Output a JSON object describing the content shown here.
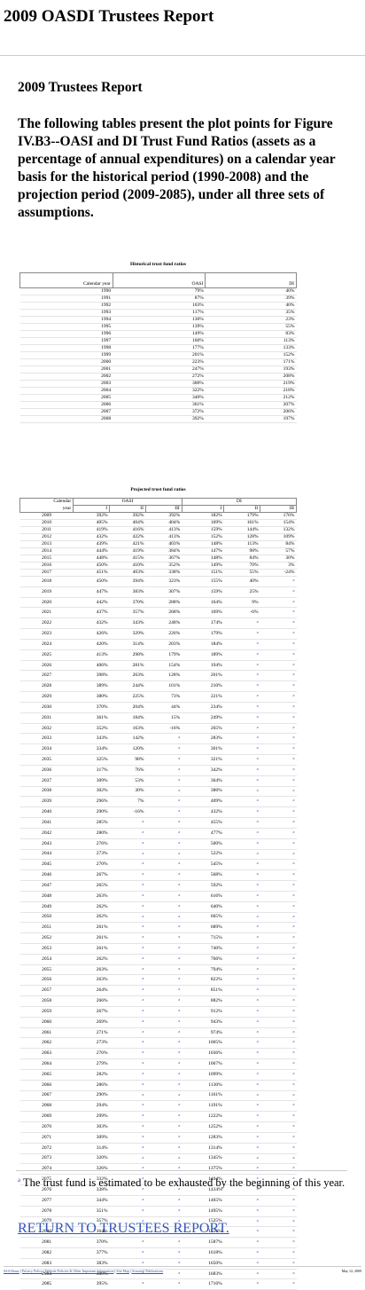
{
  "header": {
    "title": "2009 OASDI Trustees Report"
  },
  "main": {
    "title": "2009 Trustees Report",
    "intro": "The following tables present the plot points for Figure IV.B3--OASI and DI Trust Fund Ratios (assets as a percentage of annual expenditures) on a calendar year basis for the historical period (1990-2008) and the projection period (2009-2085), under all three sets of assumptions."
  },
  "historical": {
    "caption": "Historical trust fund ratios",
    "headers": {
      "year": "Calendar year",
      "oasi": "OASI",
      "di": "DI"
    },
    "rows": [
      [
        "1990",
        "79%",
        "40%"
      ],
      [
        "1991",
        "87%",
        "39%"
      ],
      [
        "1992",
        "103%",
        "40%"
      ],
      [
        "1993",
        "117%",
        "35%"
      ],
      [
        "1994",
        "130%",
        "23%"
      ],
      [
        "1995",
        "139%",
        "55%"
      ],
      [
        "1996",
        "149%",
        "83%"
      ],
      [
        "1997",
        "160%",
        "113%"
      ],
      [
        "1998",
        "177%",
        "133%"
      ],
      [
        "1999",
        "201%",
        "152%"
      ],
      [
        "2000",
        "223%",
        "171%"
      ],
      [
        "2001",
        "247%",
        "193%"
      ],
      [
        "2002",
        "272%",
        "208%"
      ],
      [
        "2003",
        "300%",
        "219%"
      ],
      [
        "2004",
        "322%",
        "218%"
      ],
      [
        "2005",
        "340%",
        "212%"
      ],
      [
        "2006",
        "361%",
        "207%"
      ],
      [
        "2007",
        "372%",
        "206%"
      ],
      [
        "2008",
        "392%",
        "197%"
      ]
    ]
  },
  "projected": {
    "caption": "Projected trust fund ratios",
    "headers": {
      "year": "Calendar",
      "year2": "year",
      "oasi": "OASI",
      "di": "DI",
      "alts": [
        "I",
        "II",
        "III"
      ]
    },
    "exhausted_mark": "a",
    "rows": [
      [
        "2009",
        "392%",
        "392%",
        "392%",
        "182%",
        "179%",
        "176%"
      ],
      [
        "2010",
        "405%",
        "404%",
        "404%",
        "169%",
        "161%",
        "154%"
      ],
      [
        "2011",
        "419%",
        "416%",
        "413%",
        "159%",
        "144%",
        "132%"
      ],
      [
        "2012",
        "432%",
        "422%",
        "413%",
        "152%",
        "128%",
        "109%"
      ],
      [
        "2013",
        "439%",
        "421%",
        "403%",
        "148%",
        "113%",
        "84%"
      ],
      [
        "2014",
        "444%",
        "419%",
        "384%",
        "147%",
        "98%",
        "57%"
      ],
      [
        "2015",
        "448%",
        "415%",
        "367%",
        "148%",
        "84%",
        "30%"
      ],
      [
        "2016",
        "450%",
        "410%",
        "352%",
        "149%",
        "70%",
        "3%"
      ],
      [
        "2017",
        "451%",
        "403%",
        "338%",
        "151%",
        "55%",
        "-24%"
      ],
      [
        "2018",
        "450%",
        "394%",
        "323%",
        "155%",
        "40%",
        "a"
      ],
      [
        "2019",
        "447%",
        "383%",
        "307%",
        "159%",
        "25%",
        "a"
      ],
      [
        "2020",
        "442%",
        "370%",
        "288%",
        "164%",
        "9%",
        "a"
      ],
      [
        "2021",
        "437%",
        "357%",
        "268%",
        "169%",
        "-6%",
        "a"
      ],
      [
        "2022",
        "432%",
        "343%",
        "248%",
        "174%",
        "a",
        "a"
      ],
      [
        "2023",
        "426%",
        "329%",
        "226%",
        "179%",
        "a",
        "a"
      ],
      [
        "2024",
        "420%",
        "314%",
        "203%",
        "184%",
        "a",
        "a"
      ],
      [
        "2025",
        "413%",
        "298%",
        "179%",
        "189%",
        "a",
        "a"
      ],
      [
        "2026",
        "406%",
        "281%",
        "154%",
        "194%",
        "a",
        "a"
      ],
      [
        "2027",
        "398%",
        "263%",
        "128%",
        "201%",
        "a",
        "a"
      ],
      [
        "2028",
        "389%",
        "244%",
        "101%",
        "210%",
        "a",
        "a"
      ],
      [
        "2029",
        "380%",
        "225%",
        "73%",
        "221%",
        "a",
        "a"
      ],
      [
        "2030",
        "370%",
        "204%",
        "44%",
        "234%",
        "a",
        "a"
      ],
      [
        "2031",
        "361%",
        "184%",
        "15%",
        "249%",
        "a",
        "a"
      ],
      [
        "2032",
        "352%",
        "163%",
        "-16%",
        "265%",
        "a",
        "a"
      ],
      [
        "2033",
        "343%",
        "142%",
        "a",
        "283%",
        "a",
        "a"
      ],
      [
        "2034",
        "334%",
        "120%",
        "a",
        "301%",
        "a",
        "a"
      ],
      [
        "2035",
        "325%",
        "98%",
        "a",
        "321%",
        "a",
        "a"
      ],
      [
        "2036",
        "317%",
        "76%",
        "a",
        "342%",
        "a",
        "a"
      ],
      [
        "2037",
        "309%",
        "53%",
        "a",
        "364%",
        "a",
        "a"
      ],
      [
        "2038",
        "302%",
        "30%",
        "a",
        "386%",
        "a",
        "a"
      ],
      [
        "2039",
        "296%",
        "7%",
        "a",
        "409%",
        "a",
        "a"
      ],
      [
        "2040",
        "290%",
        "-16%",
        "a",
        "432%",
        "a",
        "a"
      ],
      [
        "2041",
        "285%",
        "a",
        "a",
        "455%",
        "a",
        "a"
      ],
      [
        "2042",
        "280%",
        "a",
        "a",
        "477%",
        "a",
        "a"
      ],
      [
        "2043",
        "276%",
        "a",
        "a",
        "500%",
        "a",
        "a"
      ],
      [
        "2044",
        "273%",
        "a",
        "a",
        "522%",
        "a",
        "a"
      ],
      [
        "2045",
        "270%",
        "a",
        "a",
        "545%",
        "a",
        "a"
      ],
      [
        "2046",
        "267%",
        "a",
        "a",
        "568%",
        "a",
        "a"
      ],
      [
        "2047",
        "265%",
        "a",
        "a",
        "592%",
        "a",
        "a"
      ],
      [
        "2048",
        "263%",
        "a",
        "a",
        "616%",
        "a",
        "a"
      ],
      [
        "2049",
        "262%",
        "a",
        "a",
        "640%",
        "a",
        "a"
      ],
      [
        "2050",
        "262%",
        "a",
        "a",
        "665%",
        "a",
        "a"
      ],
      [
        "2051",
        "261%",
        "a",
        "a",
        "689%",
        "a",
        "a"
      ],
      [
        "2052",
        "261%",
        "a",
        "a",
        "715%",
        "a",
        "a"
      ],
      [
        "2053",
        "261%",
        "a",
        "a",
        "740%",
        "a",
        "a"
      ],
      [
        "2054",
        "262%",
        "a",
        "a",
        "766%",
        "a",
        "a"
      ],
      [
        "2055",
        "263%",
        "a",
        "a",
        "794%",
        "a",
        "a"
      ],
      [
        "2056",
        "263%",
        "a",
        "a",
        "822%",
        "a",
        "a"
      ],
      [
        "2057",
        "264%",
        "a",
        "a",
        "851%",
        "a",
        "a"
      ],
      [
        "2058",
        "266%",
        "a",
        "a",
        "882%",
        "a",
        "a"
      ],
      [
        "2059",
        "267%",
        "a",
        "a",
        "912%",
        "a",
        "a"
      ],
      [
        "2060",
        "269%",
        "a",
        "a",
        "943%",
        "a",
        "a"
      ],
      [
        "2061",
        "271%",
        "a",
        "a",
        "974%",
        "a",
        "a"
      ],
      [
        "2062",
        "273%",
        "a",
        "a",
        "1005%",
        "a",
        "a"
      ],
      [
        "2063",
        "276%",
        "a",
        "a",
        "1036%",
        "a",
        "a"
      ],
      [
        "2064",
        "279%",
        "a",
        "a",
        "1067%",
        "a",
        "a"
      ],
      [
        "2065",
        "282%",
        "a",
        "a",
        "1099%",
        "a",
        "a"
      ],
      [
        "2066",
        "286%",
        "a",
        "a",
        "1130%",
        "a",
        "a"
      ],
      [
        "2067",
        "290%",
        "a",
        "a",
        "1161%",
        "a",
        "a"
      ],
      [
        "2068",
        "294%",
        "a",
        "a",
        "1191%",
        "a",
        "a"
      ],
      [
        "2069",
        "299%",
        "a",
        "a",
        "1222%",
        "a",
        "a"
      ],
      [
        "2070",
        "303%",
        "a",
        "a",
        "1252%",
        "a",
        "a"
      ],
      [
        "2071",
        "309%",
        "a",
        "a",
        "1283%",
        "a",
        "a"
      ],
      [
        "2072",
        "314%",
        "a",
        "a",
        "1314%",
        "a",
        "a"
      ],
      [
        "2073",
        "320%",
        "a",
        "a",
        "1345%",
        "a",
        "a"
      ],
      [
        "2074",
        "326%",
        "a",
        "a",
        "1375%",
        "a",
        "a"
      ],
      [
        "2075",
        "332%",
        "a",
        "a",
        "1404%",
        "a",
        "a"
      ],
      [
        "2076",
        "338%",
        "a",
        "a",
        "1434%",
        "a",
        "a"
      ],
      [
        "2077",
        "344%",
        "a",
        "a",
        "1465%",
        "a",
        "a"
      ],
      [
        "2078",
        "351%",
        "a",
        "a",
        "1495%",
        "a",
        "a"
      ],
      [
        "2079",
        "357%",
        "a",
        "a",
        "1525%",
        "a",
        "a"
      ],
      [
        "2080",
        "364%",
        "a",
        "a",
        "1556%",
        "a",
        "a"
      ],
      [
        "2081",
        "370%",
        "a",
        "a",
        "1587%",
        "a",
        "a"
      ],
      [
        "2082",
        "377%",
        "a",
        "a",
        "1618%",
        "a",
        "a"
      ],
      [
        "2083",
        "383%",
        "a",
        "a",
        "1650%",
        "a",
        "a"
      ],
      [
        "2084",
        "389%",
        "a",
        "a",
        "1683%",
        "a",
        "a"
      ],
      [
        "2085",
        "395%",
        "a",
        "a",
        "1716%",
        "a",
        "a"
      ]
    ]
  },
  "footnote": {
    "mark": "a",
    "text": "The trust fund is estimated to be exhausted by the beginning of this year."
  },
  "return_link": "RETURN TO TRUSTEES REPORT.",
  "footer": {
    "links": [
      "SSA Home",
      "Privacy Policy",
      "Website Policies & Other Important Information",
      "Site Map",
      "Actuarial Publications"
    ],
    "date": "May 12, 2009"
  },
  "colors": {
    "link": "#3355bb",
    "rule": "#cccccc"
  }
}
